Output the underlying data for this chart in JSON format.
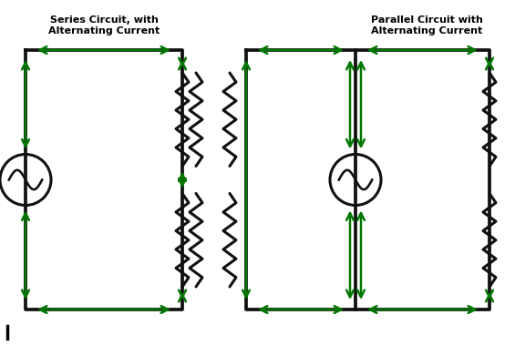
{
  "title1": "Series Circuit, with\nAlternating Current",
  "title2": "Parallel Circuit with\nAlternating Current",
  "bg_color": "#ffffff",
  "wire_color": "#111111",
  "arrow_color": "#007700",
  "wire_lw": 2.2,
  "arrow_lw": 1.8,
  "fig_width": 5.65,
  "fig_height": 3.79,
  "dpi": 100
}
